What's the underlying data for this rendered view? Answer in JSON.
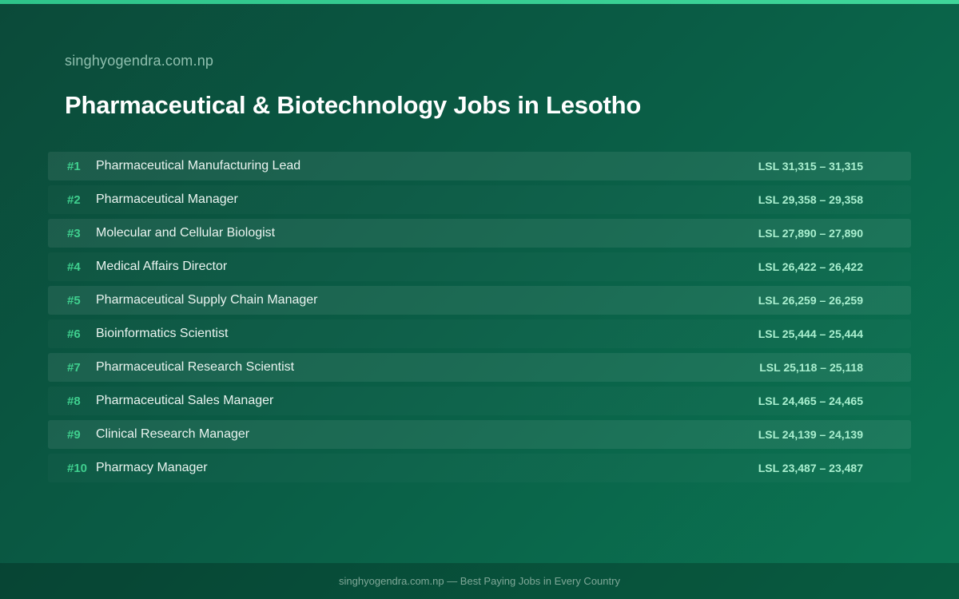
{
  "colors": {
    "accent": "#3fcf8e",
    "salary": "#a9efcf",
    "background_start": "#0b4a39",
    "background_end": "#0b7653"
  },
  "header": {
    "site_name": "singhyogendra.com.np",
    "title": "Pharmaceutical & Biotechnology Jobs in Lesotho"
  },
  "jobs": [
    {
      "rank": "#1",
      "title": "Pharmaceutical Manufacturing Lead",
      "salary": "LSL 31,315 – 31,315"
    },
    {
      "rank": "#2",
      "title": "Pharmaceutical Manager",
      "salary": "LSL 29,358 – 29,358"
    },
    {
      "rank": "#3",
      "title": "Molecular and Cellular Biologist",
      "salary": "LSL 27,890 – 27,890"
    },
    {
      "rank": "#4",
      "title": "Medical Affairs Director",
      "salary": "LSL 26,422 – 26,422"
    },
    {
      "rank": "#5",
      "title": "Pharmaceutical Supply Chain Manager",
      "salary": "LSL 26,259 – 26,259"
    },
    {
      "rank": "#6",
      "title": "Bioinformatics Scientist",
      "salary": "LSL 25,444 – 25,444"
    },
    {
      "rank": "#7",
      "title": "Pharmaceutical Research Scientist",
      "salary": "LSL 25,118 – 25,118"
    },
    {
      "rank": "#8",
      "title": "Pharmaceutical Sales Manager",
      "salary": "LSL 24,465 – 24,465"
    },
    {
      "rank": "#9",
      "title": "Clinical Research Manager",
      "salary": "LSL 24,139 – 24,139"
    },
    {
      "rank": "#10",
      "title": "Pharmacy Manager",
      "salary": "LSL 23,487 – 23,487"
    }
  ],
  "footer": {
    "text": "singhyogendra.com.np — Best Paying Jobs in Every Country"
  }
}
